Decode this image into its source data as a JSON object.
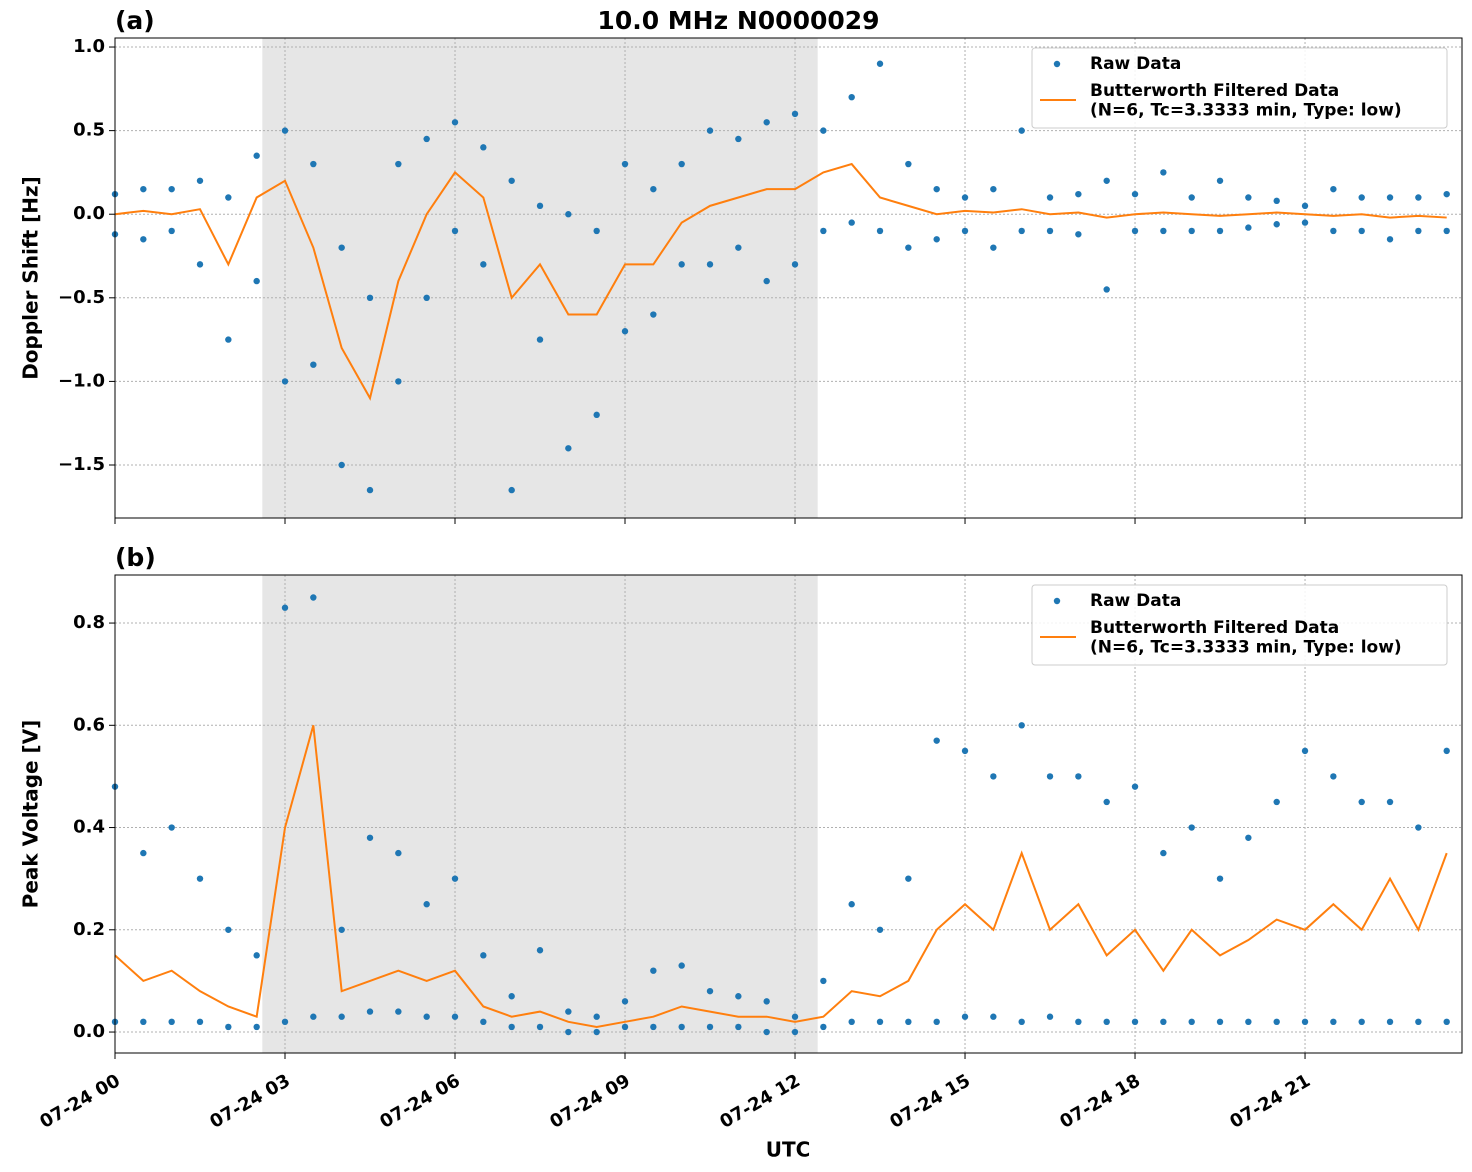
{
  "chart_data": [
    {
      "type": "scatter",
      "title": "10.0 MHz N0000029",
      "panel_label": "(a)",
      "ylabel": "Doppler Shift [Hz]",
      "xlim": [
        0,
        23.77
      ],
      "ylim": [
        -1.817,
        1.054
      ],
      "xticks": [
        0,
        3,
        6,
        9,
        12,
        15,
        18,
        21
      ],
      "yticks": [
        {
          "value": -1.5,
          "label": "−1.5"
        },
        {
          "value": -1.0,
          "label": "−1.0"
        },
        {
          "value": -0.5,
          "label": "−0.5"
        },
        {
          "value": 0.0,
          "label": "0.0"
        },
        0.5,
        {
          "value": 1.0,
          "label": "1.0"
        }
      ],
      "grid": true,
      "legend": "upper right",
      "shaded_span": [
        2.6,
        12.4
      ],
      "shade_color": "#e6e6e6",
      "series": [
        {
          "name": "Raw Data",
          "style": "points",
          "color": "#1f77b4",
          "x": [
            0,
            0,
            0.5,
            0.5,
            1,
            1,
            1.5,
            1.5,
            2,
            2,
            2.5,
            2.5,
            3,
            3,
            3.5,
            3.5,
            4,
            4,
            4.5,
            4.5,
            5,
            5,
            5.5,
            5.5,
            6,
            6,
            6.5,
            6.5,
            7,
            7,
            7.5,
            7.5,
            8,
            8,
            8.5,
            8.5,
            9,
            9,
            9.5,
            9.5,
            10,
            10,
            10.5,
            10.5,
            11,
            11,
            11.5,
            11.5,
            12,
            12,
            12.5,
            12.5,
            13,
            13,
            13.5,
            13.5,
            14,
            14,
            14.5,
            14.5,
            15,
            15,
            15.5,
            15.5,
            16,
            16,
            16.5,
            16.5,
            17,
            17,
            17.5,
            17.5,
            18,
            18,
            18.5,
            18.5,
            19,
            19,
            19.5,
            19.5,
            20,
            20,
            20.5,
            20.5,
            21,
            21,
            21.5,
            21.5,
            22,
            22,
            22.5,
            22.5,
            23,
            23,
            23.5,
            23.5
          ],
          "values": [
            0.12,
            -0.12,
            0.15,
            -0.15,
            0.15,
            -0.1,
            0.2,
            -0.3,
            0.1,
            -0.75,
            0.35,
            -0.4,
            0.5,
            -1.0,
            0.3,
            -0.9,
            -0.2,
            -1.5,
            -0.5,
            -1.65,
            0.3,
            -1.0,
            0.45,
            -0.5,
            0.55,
            -0.1,
            0.4,
            -0.3,
            0.2,
            -1.65,
            0.05,
            -0.75,
            0.0,
            -1.4,
            -0.1,
            -1.2,
            0.3,
            -0.7,
            0.15,
            -0.6,
            0.3,
            -0.3,
            0.5,
            -0.3,
            0.45,
            -0.2,
            0.55,
            -0.4,
            0.6,
            -0.3,
            0.5,
            -0.1,
            0.7,
            -0.05,
            0.9,
            -0.1,
            0.3,
            -0.2,
            0.15,
            -0.15,
            0.1,
            -0.1,
            0.15,
            -0.2,
            0.5,
            -0.1,
            0.1,
            -0.1,
            0.12,
            -0.12,
            0.2,
            -0.45,
            0.12,
            -0.1,
            0.25,
            -0.1,
            0.1,
            -0.1,
            0.2,
            -0.1,
            0.1,
            -0.08,
            0.08,
            -0.06,
            0.05,
            -0.05,
            0.15,
            -0.1,
            0.1,
            -0.1,
            0.1,
            -0.15,
            0.1,
            -0.1,
            0.12,
            -0.1
          ]
        },
        {
          "name": "Butterworth Filtered Data\n(N=6, Tc=3.3333 min, Type: low)",
          "style": "line",
          "color": "#ff7f0e",
          "x": [
            0,
            0.5,
            1,
            1.5,
            2,
            2.5,
            3,
            3.5,
            4,
            4.5,
            5,
            5.5,
            6,
            6.5,
            7,
            7.5,
            8,
            8.5,
            9,
            9.5,
            10,
            10.5,
            11,
            11.5,
            12,
            12.5,
            13,
            13.5,
            14,
            14.5,
            15,
            15.5,
            16,
            16.5,
            17,
            17.5,
            18,
            18.5,
            19,
            19.5,
            20,
            20.5,
            21,
            21.5,
            22,
            22.5,
            23,
            23.5
          ],
          "values": [
            0.0,
            0.02,
            0.0,
            0.03,
            -0.3,
            0.1,
            0.2,
            -0.2,
            -0.8,
            -1.1,
            -0.4,
            0.0,
            0.25,
            0.1,
            -0.5,
            -0.3,
            -0.6,
            -0.6,
            -0.3,
            -0.3,
            -0.05,
            0.05,
            0.1,
            0.15,
            0.15,
            0.25,
            0.3,
            0.1,
            0.05,
            0.0,
            0.02,
            0.01,
            0.03,
            0.0,
            0.01,
            -0.02,
            0.0,
            0.01,
            0.0,
            -0.01,
            0.0,
            0.01,
            0.0,
            -0.01,
            0.0,
            -0.02,
            -0.01,
            -0.02
          ]
        }
      ]
    },
    {
      "type": "scatter",
      "panel_label": "(b)",
      "ylabel": "Peak Voltage [V]",
      "xlabel": "UTC",
      "xlim": [
        0,
        23.77
      ],
      "ylim": [
        -0.041,
        0.894
      ],
      "xticks": [
        {
          "value": 0,
          "label": "07-24 00"
        },
        {
          "value": 3,
          "label": "07-24 03"
        },
        {
          "value": 6,
          "label": "07-24 06"
        },
        {
          "value": 9,
          "label": "07-24 09"
        },
        {
          "value": 12,
          "label": "07-24 12"
        },
        {
          "value": 15,
          "label": "07-24 15"
        },
        {
          "value": 18,
          "label": "07-24 18"
        },
        {
          "value": 21,
          "label": "07-24 21"
        }
      ],
      "yticks": [
        {
          "value": 0.0,
          "label": "0.0"
        },
        0.2,
        0.4,
        0.6,
        0.8
      ],
      "grid": true,
      "legend": "upper right",
      "shaded_span": [
        2.6,
        12.4
      ],
      "shade_color": "#e6e6e6",
      "series": [
        {
          "name": "Raw Data",
          "style": "points",
          "color": "#1f77b4",
          "x": [
            0,
            0,
            0.5,
            0.5,
            1,
            1,
            1.5,
            1.5,
            2,
            2,
            2.5,
            2.5,
            3,
            3,
            3.5,
            3.5,
            4,
            4,
            4.5,
            4.5,
            5,
            5,
            5.5,
            5.5,
            6,
            6,
            6.5,
            6.5,
            7,
            7,
            7.5,
            7.5,
            8,
            8,
            8.5,
            8.5,
            9,
            9,
            9.5,
            9.5,
            10,
            10,
            10.5,
            10.5,
            11,
            11,
            11.5,
            11.5,
            12,
            12,
            12.5,
            12.5,
            13,
            13,
            13.5,
            13.5,
            14,
            14,
            14.5,
            14.5,
            15,
            15,
            15.5,
            15.5,
            16,
            16,
            16.5,
            16.5,
            17,
            17,
            17.5,
            17.5,
            18,
            18,
            18.5,
            18.5,
            19,
            19,
            19.5,
            19.5,
            20,
            20,
            20.5,
            20.5,
            21,
            21,
            21.5,
            21.5,
            22,
            22,
            22.5,
            22.5,
            23,
            23,
            23.5,
            23.5
          ],
          "values": [
            0.48,
            0.02,
            0.35,
            0.02,
            0.4,
            0.02,
            0.3,
            0.02,
            0.2,
            0.01,
            0.15,
            0.01,
            0.83,
            0.02,
            0.85,
            0.03,
            0.2,
            0.03,
            0.38,
            0.04,
            0.35,
            0.04,
            0.25,
            0.03,
            0.3,
            0.03,
            0.15,
            0.02,
            0.07,
            0.01,
            0.16,
            0.01,
            0.04,
            0.0,
            0.03,
            0.0,
            0.06,
            0.01,
            0.12,
            0.01,
            0.13,
            0.01,
            0.08,
            0.01,
            0.07,
            0.01,
            0.06,
            0.0,
            0.03,
            0.0,
            0.1,
            0.01,
            0.25,
            0.02,
            0.2,
            0.02,
            0.3,
            0.02,
            0.57,
            0.02,
            0.55,
            0.03,
            0.5,
            0.03,
            0.6,
            0.02,
            0.5,
            0.03,
            0.5,
            0.02,
            0.45,
            0.02,
            0.48,
            0.02,
            0.35,
            0.02,
            0.4,
            0.02,
            0.3,
            0.02,
            0.38,
            0.02,
            0.45,
            0.02,
            0.55,
            0.02,
            0.5,
            0.02,
            0.45,
            0.02,
            0.45,
            0.02,
            0.4,
            0.02,
            0.55,
            0.02
          ]
        },
        {
          "name": "Butterworth Filtered Data\n(N=6, Tc=3.3333 min, Type: low)",
          "style": "line",
          "color": "#ff7f0e",
          "x": [
            0,
            0.5,
            1,
            1.5,
            2,
            2.5,
            3,
            3.5,
            4,
            4.5,
            5,
            5.5,
            6,
            6.5,
            7,
            7.5,
            8,
            8.5,
            9,
            9.5,
            10,
            10.5,
            11,
            11.5,
            12,
            12.5,
            13,
            13.5,
            14,
            14.5,
            15,
            15.5,
            16,
            16.5,
            17,
            17.5,
            18,
            18.5,
            19,
            19.5,
            20,
            20.5,
            21,
            21.5,
            22,
            22.5,
            23,
            23.5
          ],
          "values": [
            0.15,
            0.1,
            0.12,
            0.08,
            0.05,
            0.03,
            0.4,
            0.6,
            0.08,
            0.1,
            0.12,
            0.1,
            0.12,
            0.05,
            0.03,
            0.04,
            0.02,
            0.01,
            0.02,
            0.03,
            0.05,
            0.04,
            0.03,
            0.03,
            0.02,
            0.03,
            0.08,
            0.07,
            0.1,
            0.2,
            0.25,
            0.2,
            0.35,
            0.2,
            0.25,
            0.15,
            0.2,
            0.12,
            0.2,
            0.15,
            0.18,
            0.22,
            0.2,
            0.25,
            0.2,
            0.3,
            0.2,
            0.35
          ]
        }
      ]
    }
  ]
}
